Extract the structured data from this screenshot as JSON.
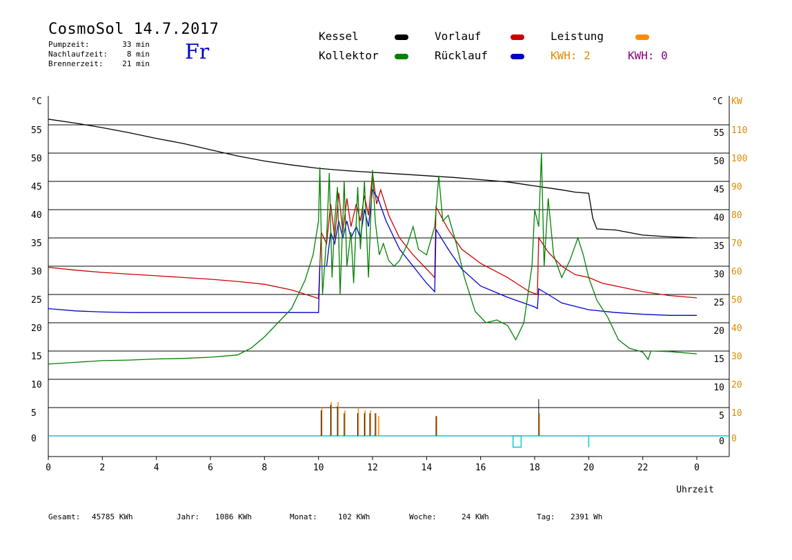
{
  "header": {
    "title": "CosmoSol 14.7.2017",
    "day": "Fr",
    "stats": [
      {
        "label": "Pumpzeit:",
        "value": "33 min"
      },
      {
        "label": "Nachlaufzeit:",
        "value": "8 min"
      },
      {
        "label": "Brennerzeit:",
        "value": "21 min"
      }
    ]
  },
  "legend": {
    "kessel": "Kessel",
    "kollektor": "Kollektor",
    "vorlauf": "Vorlauf",
    "ruecklauf": "Rücklauf",
    "leistung": "Leistung",
    "kwh1": "KWH: 2",
    "kwh2": "KWH: 0"
  },
  "colors": {
    "kessel": "#000000",
    "kollektor": "#008000",
    "vorlauf": "#cc0000",
    "ruecklauf": "#0000cc",
    "leistung": "#ff8c00",
    "kwh1": "#e08a00",
    "kwh2": "#800080",
    "pump": "#00cccc"
  },
  "footer": [
    {
      "label": "Gesamt:",
      "value": "45785 KWh"
    },
    {
      "label": "Jahr:",
      "value": "1086 KWh"
    },
    {
      "label": "Monat:",
      "value": "102 KWh"
    },
    {
      "label": "Woche:",
      "value": "24 KWh"
    },
    {
      "label": "Tag:",
      "value": "2391 Wh"
    }
  ],
  "chart_data": {
    "type": "line",
    "xlabel": "Uhrzeit",
    "ylabel_left": "°C",
    "ylabel_right": "°C",
    "ylabel_right2": "KW",
    "xlim": [
      0,
      24
    ],
    "ylim": [
      -5,
      60
    ],
    "x_ticks": [
      "0",
      "2",
      "4",
      "6",
      "8",
      "10",
      "12",
      "14",
      "16",
      "18",
      "20",
      "22",
      "0"
    ],
    "y_ticks": [
      0,
      5,
      10,
      15,
      20,
      25,
      30,
      35,
      40,
      45,
      50,
      55
    ],
    "y_ticks_kw": [
      0,
      10,
      20,
      30,
      40,
      50,
      60,
      70,
      80,
      90,
      100,
      110
    ],
    "grid": true,
    "series": [
      {
        "name": "Kessel",
        "key": "kessel",
        "points": [
          [
            0,
            56
          ],
          [
            1,
            55.3
          ],
          [
            2,
            54.5
          ],
          [
            3,
            53.6
          ],
          [
            4,
            52.6
          ],
          [
            5,
            51.7
          ],
          [
            6,
            50.6
          ],
          [
            7,
            49.5
          ],
          [
            8,
            48.6
          ],
          [
            9,
            47.9
          ],
          [
            10,
            47.3
          ],
          [
            11,
            46.9
          ],
          [
            12,
            46.6
          ],
          [
            13,
            46.3
          ],
          [
            14,
            46.0
          ],
          [
            15,
            45.7
          ],
          [
            16,
            45.3
          ],
          [
            17,
            44.9
          ],
          [
            18,
            44.2
          ],
          [
            19,
            43.5
          ],
          [
            19.5,
            43.1
          ],
          [
            20,
            42.9
          ],
          [
            20.15,
            38.5
          ],
          [
            20.3,
            36.6
          ],
          [
            21,
            36.4
          ],
          [
            22,
            35.5
          ],
          [
            23,
            35.2
          ],
          [
            24,
            35.0
          ]
        ]
      },
      {
        "name": "Vorlauf",
        "key": "vorlauf",
        "points": [
          [
            0,
            29.8
          ],
          [
            1,
            29.3
          ],
          [
            2,
            28.9
          ],
          [
            3,
            28.6
          ],
          [
            4,
            28.3
          ],
          [
            5,
            28.0
          ],
          [
            6,
            27.7
          ],
          [
            7,
            27.3
          ],
          [
            8,
            26.8
          ],
          [
            9,
            25.8
          ],
          [
            10,
            24.3
          ],
          [
            10.1,
            36
          ],
          [
            10.3,
            34
          ],
          [
            10.45,
            41
          ],
          [
            10.6,
            35
          ],
          [
            10.75,
            43
          ],
          [
            10.9,
            36
          ],
          [
            11.05,
            42
          ],
          [
            11.2,
            37
          ],
          [
            11.4,
            41
          ],
          [
            11.55,
            38
          ],
          [
            11.7,
            42.5
          ],
          [
            11.85,
            39
          ],
          [
            12.0,
            46.5
          ],
          [
            12.15,
            41
          ],
          [
            12.3,
            43.5
          ],
          [
            12.6,
            39
          ],
          [
            13.0,
            35
          ],
          [
            13.5,
            32
          ],
          [
            14.0,
            29.5
          ],
          [
            14.3,
            28
          ],
          [
            14.35,
            40.5
          ],
          [
            14.8,
            36.5
          ],
          [
            15.3,
            33
          ],
          [
            16,
            30.5
          ],
          [
            17,
            28
          ],
          [
            17.8,
            25.5
          ],
          [
            18.1,
            25
          ],
          [
            18.15,
            35
          ],
          [
            18.5,
            32.5
          ],
          [
            19,
            30
          ],
          [
            19.5,
            28.5
          ],
          [
            20,
            28
          ],
          [
            20.5,
            27
          ],
          [
            21,
            26.5
          ],
          [
            22,
            25.5
          ],
          [
            23,
            24.8
          ],
          [
            24,
            24.4
          ]
        ]
      },
      {
        "name": "Rücklauf",
        "key": "ruecklauf",
        "points": [
          [
            0,
            22.5
          ],
          [
            1,
            22.1
          ],
          [
            2,
            21.9
          ],
          [
            3,
            21.8
          ],
          [
            4,
            21.8
          ],
          [
            5,
            21.8
          ],
          [
            6,
            21.8
          ],
          [
            7,
            21.8
          ],
          [
            8,
            21.8
          ],
          [
            9,
            21.8
          ],
          [
            10,
            21.8
          ],
          [
            10.05,
            30
          ],
          [
            10.3,
            30
          ],
          [
            10.45,
            36
          ],
          [
            10.6,
            34
          ],
          [
            10.75,
            38
          ],
          [
            10.9,
            35
          ],
          [
            11.05,
            38
          ],
          [
            11.2,
            35
          ],
          [
            11.4,
            37
          ],
          [
            11.55,
            35
          ],
          [
            11.7,
            40
          ],
          [
            11.85,
            37
          ],
          [
            12.0,
            43.5
          ],
          [
            12.2,
            42
          ],
          [
            12.5,
            38
          ],
          [
            13.0,
            33
          ],
          [
            13.5,
            30
          ],
          [
            14.0,
            27
          ],
          [
            14.3,
            25.5
          ],
          [
            14.35,
            36.5
          ],
          [
            14.8,
            33
          ],
          [
            15.3,
            29.5
          ],
          [
            16,
            26.5
          ],
          [
            17,
            24.5
          ],
          [
            18,
            22.8
          ],
          [
            18.1,
            22.5
          ],
          [
            18.15,
            26
          ],
          [
            18.5,
            25
          ],
          [
            19,
            23.5
          ],
          [
            20,
            22.3
          ],
          [
            21,
            21.8
          ],
          [
            22,
            21.5
          ],
          [
            23,
            21.3
          ],
          [
            24,
            21.3
          ]
        ]
      },
      {
        "name": "Kollektor",
        "key": "kollektor",
        "points": [
          [
            0,
            12.7
          ],
          [
            1,
            13.0
          ],
          [
            2,
            13.3
          ],
          [
            3,
            13.4
          ],
          [
            4,
            13.6
          ],
          [
            5,
            13.7
          ],
          [
            6,
            13.9
          ],
          [
            7,
            14.3
          ],
          [
            7.5,
            15.5
          ],
          [
            8,
            17.5
          ],
          [
            8.5,
            20
          ],
          [
            9,
            22.5
          ],
          [
            9.5,
            27.5
          ],
          [
            9.8,
            32
          ],
          [
            10.0,
            38
          ],
          [
            10.05,
            47.5
          ],
          [
            10.15,
            25
          ],
          [
            10.3,
            35
          ],
          [
            10.4,
            46.5
          ],
          [
            10.5,
            28
          ],
          [
            10.6,
            38
          ],
          [
            10.7,
            44
          ],
          [
            10.8,
            25
          ],
          [
            10.95,
            45
          ],
          [
            11.05,
            30
          ],
          [
            11.2,
            36
          ],
          [
            11.3,
            27
          ],
          [
            11.45,
            44
          ],
          [
            11.55,
            33
          ],
          [
            11.7,
            45
          ],
          [
            11.85,
            28
          ],
          [
            12.0,
            47
          ],
          [
            12.1,
            38
          ],
          [
            12.25,
            32
          ],
          [
            12.4,
            34
          ],
          [
            12.6,
            31
          ],
          [
            12.8,
            30
          ],
          [
            13.0,
            31
          ],
          [
            13.3,
            34
          ],
          [
            13.5,
            37
          ],
          [
            13.7,
            33
          ],
          [
            14.0,
            32
          ],
          [
            14.3,
            37
          ],
          [
            14.45,
            46
          ],
          [
            14.6,
            38
          ],
          [
            14.8,
            39
          ],
          [
            15.1,
            34
          ],
          [
            15.4,
            28
          ],
          [
            15.8,
            22
          ],
          [
            16.2,
            20
          ],
          [
            16.6,
            20.5
          ],
          [
            17.0,
            19.5
          ],
          [
            17.3,
            17
          ],
          [
            17.6,
            20
          ],
          [
            17.9,
            30
          ],
          [
            18.0,
            40
          ],
          [
            18.15,
            37
          ],
          [
            18.25,
            50
          ],
          [
            18.35,
            30
          ],
          [
            18.5,
            42
          ],
          [
            18.7,
            32
          ],
          [
            19.0,
            28
          ],
          [
            19.3,
            31
          ],
          [
            19.6,
            35
          ],
          [
            19.8,
            32
          ],
          [
            20.0,
            28
          ],
          [
            20.3,
            24
          ],
          [
            20.7,
            21
          ],
          [
            21.1,
            17
          ],
          [
            21.5,
            15.5
          ],
          [
            22,
            14.8
          ],
          [
            22.2,
            13.5
          ],
          [
            22.3,
            15.0
          ],
          [
            23,
            14.9
          ],
          [
            24,
            14.5
          ]
        ]
      }
    ],
    "leistung_spikes": [
      [
        10.1,
        5
      ],
      [
        10.45,
        6
      ],
      [
        10.7,
        6
      ],
      [
        10.95,
        4.5
      ],
      [
        11.45,
        5
      ],
      [
        11.7,
        4.5
      ],
      [
        11.9,
        4.5
      ],
      [
        12.1,
        4
      ],
      [
        12.2,
        3.5
      ],
      [
        14.35,
        3.5
      ],
      [
        18.15,
        4
      ]
    ],
    "kessel_spikes": [
      [
        10.1,
        4.5
      ],
      [
        10.45,
        5.5
      ],
      [
        10.7,
        5.2
      ],
      [
        10.95,
        4
      ],
      [
        11.45,
        4
      ],
      [
        11.7,
        4
      ],
      [
        11.9,
        4
      ],
      [
        12.1,
        4
      ],
      [
        14.35,
        3.5
      ],
      [
        18.15,
        6.5
      ]
    ],
    "pump_events": [
      [
        17.2,
        17.5,
        -2
      ],
      [
        20.0,
        20.0,
        -2
      ]
    ]
  }
}
